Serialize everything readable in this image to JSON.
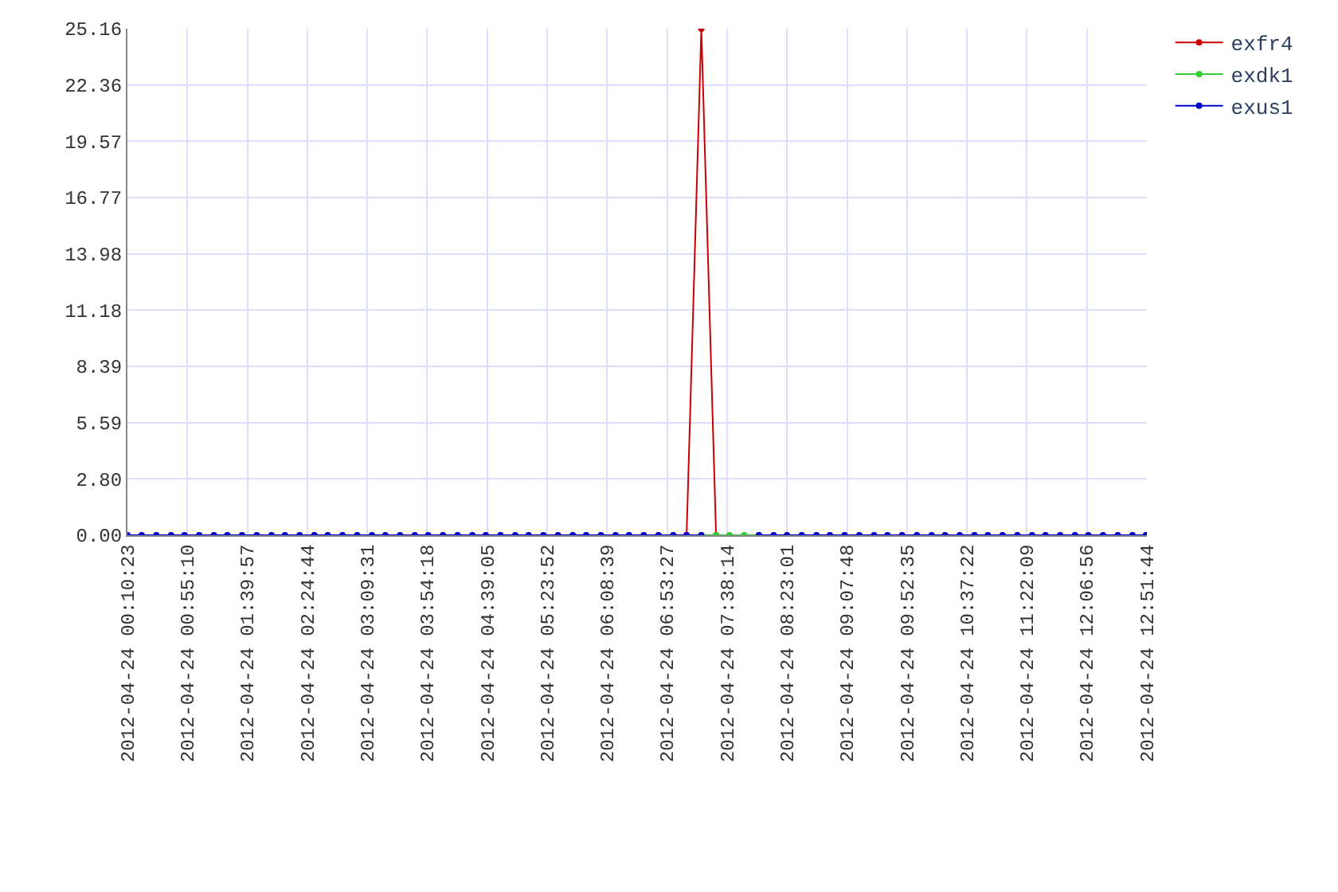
{
  "chart_data": {
    "type": "line",
    "x": [
      "2012-04-24T00:10:23",
      "2012-04-24T00:21",
      "2012-04-24T00:32",
      "2012-04-24T00:43",
      "2012-04-24T00:53",
      "2012-04-24T01:04",
      "2012-04-24T01:15",
      "2012-04-24T01:25",
      "2012-04-24T01:36",
      "2012-04-24T01:47",
      "2012-04-24T01:58",
      "2012-04-24T02:08",
      "2012-04-24T02:19",
      "2012-04-24T02:30",
      "2012-04-24T02:40",
      "2012-04-24T02:51",
      "2012-04-24T03:02",
      "2012-04-24T03:13",
      "2012-04-24T03:23",
      "2012-04-24T03:34",
      "2012-04-24T03:45",
      "2012-04-24T03:55",
      "2012-04-24T04:06",
      "2012-04-24T04:17",
      "2012-04-24T04:28",
      "2012-04-24T04:38",
      "2012-04-24T04:49",
      "2012-04-24T05:00",
      "2012-04-24T05:10",
      "2012-04-24T05:21",
      "2012-04-24T05:32",
      "2012-04-24T05:43",
      "2012-04-24T05:53",
      "2012-04-24T06:04",
      "2012-04-24T06:15",
      "2012-04-24T06:25",
      "2012-04-24T06:36",
      "2012-04-24T06:47",
      "2012-04-24T06:58",
      "2012-04-24T07:08",
      "2012-04-24T07:19",
      "2012-04-24T07:30",
      "2012-04-24T07:40",
      "2012-04-24T07:51",
      "2012-04-24T08:02",
      "2012-04-24T08:13",
      "2012-04-24T08:23",
      "2012-04-24T08:34",
      "2012-04-24T08:45",
      "2012-04-24T08:55",
      "2012-04-24T09:06",
      "2012-04-24T09:17",
      "2012-04-24T09:28",
      "2012-04-24T09:38",
      "2012-04-24T09:49",
      "2012-04-24T10:00",
      "2012-04-24T10:11",
      "2012-04-24T10:21",
      "2012-04-24T10:32",
      "2012-04-24T10:43",
      "2012-04-24T10:53",
      "2012-04-24T11:04",
      "2012-04-24T11:15",
      "2012-04-24T11:26",
      "2012-04-24T11:36",
      "2012-04-24T11:47",
      "2012-04-24T11:58",
      "2012-04-24T12:08",
      "2012-04-24T12:19",
      "2012-04-24T12:30",
      "2012-04-24T12:41",
      "2012-04-24T12:51"
    ],
    "series": [
      {
        "name": "exfr4",
        "color": "#cc0000",
        "values": [
          null,
          null,
          null,
          null,
          null,
          null,
          null,
          null,
          null,
          null,
          null,
          null,
          null,
          null,
          null,
          null,
          null,
          null,
          null,
          null,
          null,
          null,
          null,
          null,
          null,
          null,
          null,
          null,
          null,
          null,
          null,
          null,
          null,
          null,
          null,
          null,
          null,
          null,
          null,
          0,
          25.16,
          0,
          null,
          null,
          null,
          null,
          null,
          null,
          null,
          null,
          null,
          null,
          null,
          null,
          null,
          null,
          null,
          null,
          null,
          null,
          null,
          null,
          null,
          null,
          null,
          null,
          null,
          null,
          null,
          null,
          null,
          null
        ]
      },
      {
        "name": "exdk1",
        "color": "#33cc33",
        "values": [
          null,
          null,
          null,
          null,
          null,
          null,
          null,
          null,
          null,
          null,
          null,
          null,
          null,
          null,
          null,
          null,
          null,
          null,
          null,
          null,
          null,
          null,
          null,
          null,
          null,
          null,
          null,
          null,
          null,
          null,
          null,
          null,
          null,
          null,
          null,
          null,
          null,
          null,
          null,
          null,
          0,
          0,
          0,
          0,
          0,
          null,
          null,
          null,
          null,
          null,
          null,
          null,
          null,
          null,
          null,
          null,
          null,
          null,
          null,
          null,
          null,
          null,
          null,
          null,
          null,
          null,
          null,
          null,
          null,
          null,
          null,
          null
        ]
      },
      {
        "name": "exus1",
        "color": "#0000cc",
        "values": [
          0,
          0,
          0,
          0,
          0,
          0,
          0,
          0,
          0,
          0,
          0,
          0,
          0,
          0,
          0,
          0,
          0,
          0,
          0,
          0,
          0,
          0,
          0,
          0,
          0,
          0,
          0,
          0,
          0,
          0,
          0,
          0,
          0,
          0,
          0,
          0,
          0,
          0,
          0,
          0,
          0,
          null,
          null,
          null,
          0,
          0,
          0,
          0,
          0,
          0,
          0,
          0,
          0,
          0,
          0,
          0,
          0,
          0,
          0,
          0,
          0,
          0,
          0,
          0,
          0,
          0,
          0,
          0,
          0,
          0,
          0,
          0
        ]
      }
    ],
    "xlim": [
      "2012-04-24T00:10:23",
      "2012-04-24T12:51:44"
    ],
    "xticks": [
      {
        "value": "2012-04-24T00:10:23",
        "label": "2012-04-24 00:10:23"
      },
      {
        "value": "2012-04-24T00:55:10",
        "label": "2012-04-24 00:55:10"
      },
      {
        "value": "2012-04-24T01:39:57",
        "label": "2012-04-24 01:39:57"
      },
      {
        "value": "2012-04-24T02:24:44",
        "label": "2012-04-24 02:24:44"
      },
      {
        "value": "2012-04-24T03:09:31",
        "label": "2012-04-24 03:09:31"
      },
      {
        "value": "2012-04-24T03:54:18",
        "label": "2012-04-24 03:54:18"
      },
      {
        "value": "2012-04-24T04:39:05",
        "label": "2012-04-24 04:39:05"
      },
      {
        "value": "2012-04-24T05:23:52",
        "label": "2012-04-24 05:23:52"
      },
      {
        "value": "2012-04-24T06:08:39",
        "label": "2012-04-24 06:08:39"
      },
      {
        "value": "2012-04-24T06:53:27",
        "label": "2012-04-24 06:53:27"
      },
      {
        "value": "2012-04-24T07:38:14",
        "label": "2012-04-24 07:38:14"
      },
      {
        "value": "2012-04-24T08:23:01",
        "label": "2012-04-24 08:23:01"
      },
      {
        "value": "2012-04-24T09:07:48",
        "label": "2012-04-24 09:07:48"
      },
      {
        "value": "2012-04-24T09:52:35",
        "label": "2012-04-24 09:52:35"
      },
      {
        "value": "2012-04-24T10:37:22",
        "label": "2012-04-24 10:37:22"
      },
      {
        "value": "2012-04-24T11:22:09",
        "label": "2012-04-24 11:22:09"
      },
      {
        "value": "2012-04-24T12:06:56",
        "label": "2012-04-24 12:06:56"
      },
      {
        "value": "2012-04-24T12:51:44",
        "label": "2012-04-24 12:51:44"
      }
    ],
    "ylim": [
      0,
      25.16
    ],
    "yticks": [
      {
        "value": 0,
        "label": "0.00"
      },
      {
        "value": 2.8,
        "label": "2.80"
      },
      {
        "value": 5.59,
        "label": "5.59"
      },
      {
        "value": 8.39,
        "label": "8.39"
      },
      {
        "value": 11.18,
        "label": "11.18"
      },
      {
        "value": 13.98,
        "label": "13.98"
      },
      {
        "value": 16.77,
        "label": "16.77"
      },
      {
        "value": 19.57,
        "label": "19.57"
      },
      {
        "value": 22.36,
        "label": "22.36"
      },
      {
        "value": 25.16,
        "label": "25.16"
      }
    ],
    "grid": true,
    "legend": "top right",
    "marker": "circle",
    "line_style": "solid"
  }
}
